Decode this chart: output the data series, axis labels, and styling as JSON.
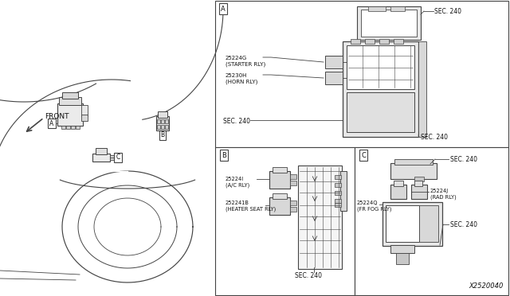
{
  "bg_color": "#ffffff",
  "line_color": "#444444",
  "text_color": "#111111",
  "fig_width": 6.4,
  "fig_height": 3.72,
  "dpi": 100,
  "part_number": "X2520040",
  "labels": {
    "front": "FRONT",
    "part_25224G": "25224G\n(STARTER RLY)",
    "part_25230H": "25230H\n(HORN RLY)",
    "part_252241": "25224I\n(A/C RLY)",
    "part_252241B": "252241B\n(HEATER SEAT RLY)",
    "part_252240": "25224Q\n(FR FOG RLY)",
    "part_25224J": "25224J\n(RAD RLY)",
    "sec240": "SEC. 240"
  }
}
